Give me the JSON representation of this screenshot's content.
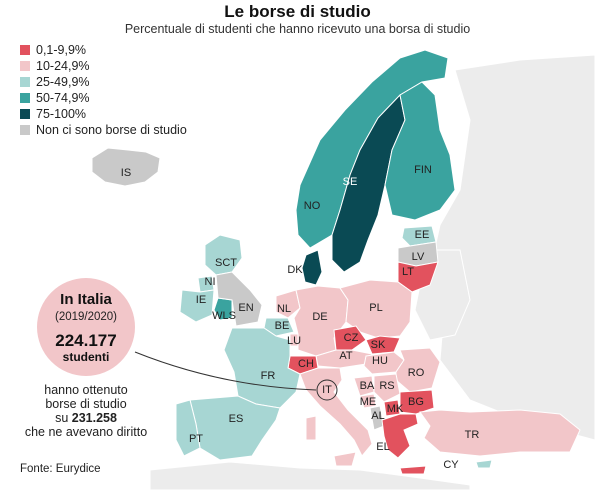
{
  "title": "Le borse di studio",
  "subtitle": "Percentuale di studenti che hanno ricevuto una borsa di studio",
  "legend": [
    {
      "label": "0,1-9,9%",
      "color": "#e2525e"
    },
    {
      "label": "10-24,9%",
      "color": "#f2c6c9"
    },
    {
      "label": "25-49,9%",
      "color": "#a7d6d3"
    },
    {
      "label": "50-74,9%",
      "color": "#3aa39f"
    },
    {
      "label": "75-100%",
      "color": "#0a4a54"
    },
    {
      "label": "Non ci sono borse di studio",
      "color": "#c9c9c9"
    }
  ],
  "countries": {
    "IS": {
      "label": "IS",
      "category": "Non ci sono borse di studio"
    },
    "NO": {
      "label": "NO",
      "category": "50-74,9%"
    },
    "SE": {
      "label": "SE",
      "category": "75-100%"
    },
    "FIN": {
      "label": "FIN",
      "category": "50-74,9%"
    },
    "EE": {
      "label": "EE",
      "category": "25-49,9%"
    },
    "LV": {
      "label": "LV",
      "category": "Non ci sono borse di studio"
    },
    "LT": {
      "label": "LT",
      "category": "0,1-9,9%"
    },
    "DK": {
      "label": "DK",
      "category": "75-100%"
    },
    "SCT": {
      "label": "SCT",
      "category": "25-49,9%"
    },
    "NI": {
      "label": "NI",
      "category": "25-49,9%"
    },
    "IE": {
      "label": "IE",
      "category": "25-49,9%"
    },
    "WLS": {
      "label": "WLS",
      "category": "50-74,9%"
    },
    "EN": {
      "label": "EN",
      "category": "Non ci sono borse di studio"
    },
    "NL": {
      "label": "NL",
      "category": "10-24,9%"
    },
    "BE": {
      "label": "BE",
      "category": "25-49,9%"
    },
    "LU": {
      "label": "LU",
      "category": "10-24,9%"
    },
    "DE": {
      "label": "DE",
      "category": "10-24,9%"
    },
    "PL": {
      "label": "PL",
      "category": "10-24,9%"
    },
    "CZ": {
      "label": "CZ",
      "category": "0,1-9,9%"
    },
    "SK": {
      "label": "SK",
      "category": "0,1-9,9%"
    },
    "AT": {
      "label": "AT",
      "category": "10-24,9%"
    },
    "CH": {
      "label": "CH",
      "category": "0,1-9,9%"
    },
    "HU": {
      "label": "HU",
      "category": "10-24,9%"
    },
    "FR": {
      "label": "FR",
      "category": "25-49,9%"
    },
    "RO": {
      "label": "RO",
      "category": "10-24,9%"
    },
    "IT": {
      "label": "IT",
      "category": "10-24,9%"
    },
    "BA": {
      "label": "BA",
      "category": "10-24,9%"
    },
    "RS": {
      "label": "RS",
      "category": "10-24,9%"
    },
    "BG": {
      "label": "BG",
      "category": "0,1-9,9%"
    },
    "ME": {
      "label": "ME",
      "category": "10-24,9%"
    },
    "AL": {
      "label": "AL",
      "category": "Non ci sono borse di studio"
    },
    "MK": {
      "label": "MK",
      "category": "0,1-9,9%"
    },
    "ES": {
      "label": "ES",
      "category": "25-49,9%"
    },
    "PT": {
      "label": "PT",
      "category": "25-49,9%"
    },
    "EL": {
      "label": "EL",
      "category": "0,1-9,9%"
    },
    "TR": {
      "label": "TR",
      "category": "10-24,9%"
    },
    "CY": {
      "label": "CY",
      "category": "25-49,9%"
    }
  },
  "italy": {
    "title": "In Italia",
    "year": "(2019/2020)",
    "count": "224.177",
    "unit": "studenti",
    "desc_line1": "hanno ottenuto",
    "desc_line2": "borse di studio",
    "desc_line3_prefix": "su",
    "desc_line3_value": "231.258",
    "desc_line4": "che ne avevano diritto"
  },
  "source": "Fonte: Eurydice"
}
